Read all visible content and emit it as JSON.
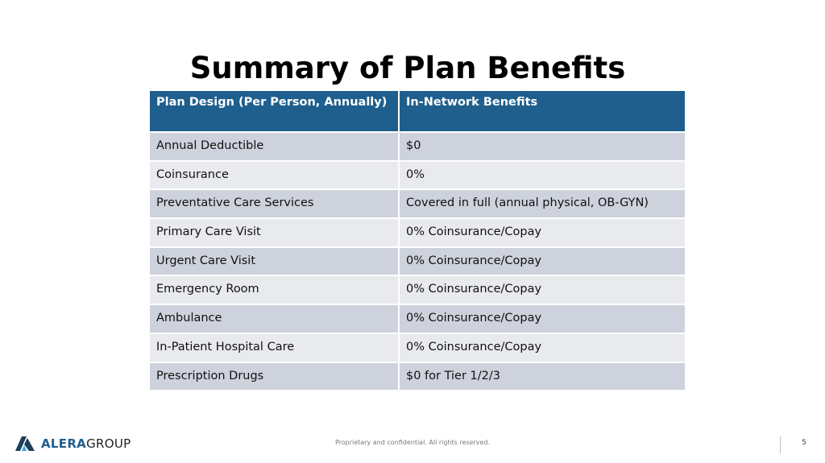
{
  "slide": {
    "title": "Summary of Plan Benefits",
    "footer_text": "Proprietary and confidential. All rights reserved.",
    "page_number": "5"
  },
  "logo": {
    "name_strong": "ALERA",
    "name_light": "GROUP",
    "icon": "alera-mark-icon",
    "colors": {
      "mark_dark": "#1f3f5c",
      "mark_accent": "#2aa7d6",
      "brand_blue": "#1f5f8d"
    }
  },
  "table": {
    "headers": [
      "Plan Design (Per Person, Annually)",
      "In-Network Benefits"
    ],
    "rows": [
      [
        "Annual Deductible",
        "$0"
      ],
      [
        "Coinsurance",
        "0%"
      ],
      [
        "Preventative Care Services",
        "Covered in full (annual physical, OB-GYN)"
      ],
      [
        "Primary Care Visit",
        "0% Coinsurance/Copay"
      ],
      [
        "Urgent Care Visit",
        "0% Coinsurance/Copay"
      ],
      [
        "Emergency Room",
        "0% Coinsurance/Copay"
      ],
      [
        "Ambulance",
        "0% Coinsurance/Copay"
      ],
      [
        "In-Patient Hospital Care",
        "0% Coinsurance/Copay"
      ],
      [
        "Prescription Drugs",
        "$0 for Tier 1/2/3"
      ]
    ],
    "colors": {
      "header_bg": "#1f5f8d",
      "row_dark": "#cdd2dc",
      "row_light": "#e8eaed"
    }
  }
}
